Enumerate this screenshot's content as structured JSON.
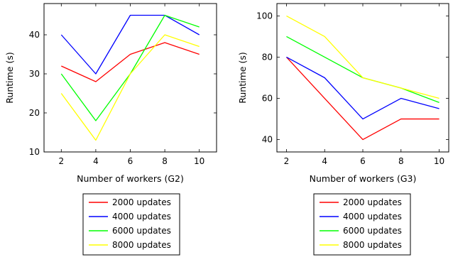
{
  "chart_data": [
    {
      "type": "line",
      "xlabel": "Number of workers (G2)",
      "ylabel": "Runtime (s)",
      "x": [
        2,
        4,
        6,
        8,
        10
      ],
      "xlim": [
        1,
        11
      ],
      "ylim": [
        10,
        48
      ],
      "xticks": [
        2,
        4,
        6,
        8,
        10
      ],
      "yticks": [
        10,
        20,
        30,
        40
      ],
      "grid": false,
      "legend": "below",
      "series": [
        {
          "name": "2000 updates",
          "color": "#ff0000",
          "values": [
            32,
            28,
            35,
            38,
            35
          ]
        },
        {
          "name": "4000 updates",
          "color": "#0000ff",
          "values": [
            40,
            30,
            45,
            45,
            40
          ]
        },
        {
          "name": "6000 updates",
          "color": "#00ff00",
          "values": [
            30,
            18,
            30,
            45,
            42
          ]
        },
        {
          "name": "8000 updates",
          "color": "#ffff00",
          "values": [
            25,
            13,
            30,
            40,
            37
          ]
        }
      ]
    },
    {
      "type": "line",
      "xlabel": "Number of workers (G3)",
      "ylabel": "Runtime (s)",
      "x": [
        2,
        4,
        6,
        8,
        10
      ],
      "xlim": [
        1.5,
        10.5
      ],
      "ylim": [
        34,
        106
      ],
      "xticks": [
        2,
        4,
        6,
        8,
        10
      ],
      "yticks": [
        40,
        60,
        80,
        100
      ],
      "grid": false,
      "legend": "below",
      "series": [
        {
          "name": "2000 updates",
          "color": "#ff0000",
          "values": [
            80,
            60,
            40,
            50,
            50
          ]
        },
        {
          "name": "4000 updates",
          "color": "#0000ff",
          "values": [
            80,
            70,
            50,
            60,
            55
          ]
        },
        {
          "name": "6000 updates",
          "color": "#00ff00",
          "values": [
            90,
            80,
            70,
            65,
            58
          ]
        },
        {
          "name": "8000 updates",
          "color": "#ffff00",
          "values": [
            100,
            90,
            70,
            65,
            60
          ]
        }
      ]
    }
  ]
}
